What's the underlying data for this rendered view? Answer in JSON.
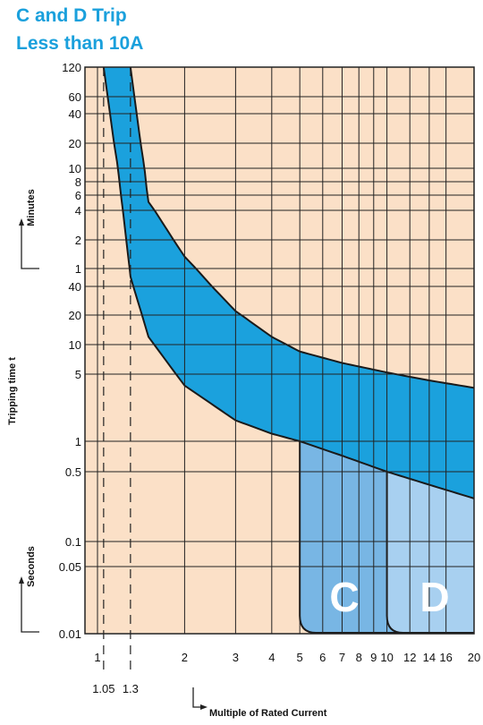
{
  "title_line1": "C and D Trip",
  "title_line2": "Less than 10A",
  "colors": {
    "title": "#1aa0dc",
    "background": "#fbe0c7",
    "band": "#1ba1dd",
    "zone_c": "#78b6e4",
    "zone_d": "#a8d0f0",
    "grid": "#222222"
  },
  "chart_data": {
    "type": "area",
    "x_scale": "log",
    "xlabel": "Multiple of Rated Current",
    "ylabel": "Tripping time t",
    "y_unit_upper": "Minutes",
    "y_unit_lower": "Seconds",
    "x_ticks": [
      "1",
      "2",
      "3",
      "4",
      "5",
      "6",
      "7",
      "8",
      "9",
      "10",
      "12",
      "14",
      "16",
      "20"
    ],
    "x_ticks_extra": [
      "1.05",
      "1.3"
    ],
    "y_ticks_minutes": [
      "120",
      "60",
      "40",
      "20",
      "10",
      "8",
      "6",
      "4",
      "2",
      "1"
    ],
    "y_ticks_seconds": [
      "40",
      "20",
      "10",
      "5",
      "1",
      "0.5",
      "0.1",
      "0.05",
      "0.01"
    ],
    "ylim_seconds": [
      0.01,
      7200
    ],
    "xlim": [
      1,
      20
    ],
    "series": [
      {
        "name": "",
        "boundary": "upper",
        "x": [
          1.3,
          1.5,
          2,
          3,
          4,
          5,
          7,
          10,
          14,
          20
        ],
        "y_seconds": [
          7200,
          300,
          80,
          22,
          12,
          8.5,
          6.5,
          5.2,
          4.3,
          3.6
        ]
      },
      {
        "name": "",
        "boundary": "lower",
        "x": [
          1.05,
          1.2,
          1.3,
          1.5,
          2,
          3,
          4,
          5,
          7,
          10,
          14,
          20
        ],
        "y_seconds": [
          7200,
          400,
          50,
          12,
          3.8,
          1.65,
          1.2,
          1.0,
          0.72,
          0.5,
          0.37,
          0.27
        ]
      }
    ],
    "zones": [
      {
        "label": "C",
        "x_start": 5,
        "x_end": 20,
        "y_bottom": 0.01
      },
      {
        "label": "D",
        "x_start": 10,
        "x_end": 20,
        "y_bottom": 0.01
      }
    ],
    "grid": true
  }
}
